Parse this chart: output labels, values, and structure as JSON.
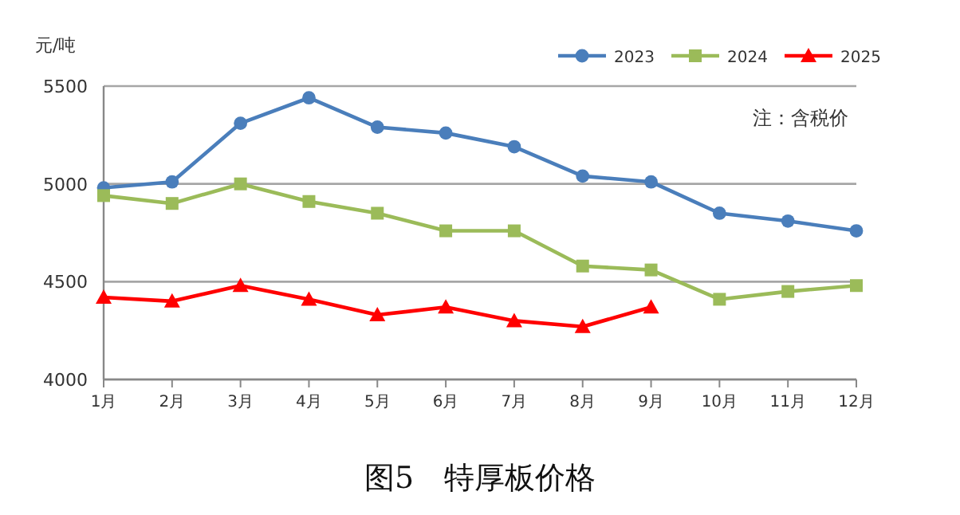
{
  "chart_data": {
    "type": "line",
    "title": "图5　特厚板价格",
    "ylabel": "元/吨",
    "annotations": [
      "注：含税价"
    ],
    "categories": [
      "1月",
      "2月",
      "3月",
      "4月",
      "5月",
      "6月",
      "7月",
      "8月",
      "9月",
      "10月",
      "11月",
      "12月"
    ],
    "series": [
      {
        "name": "2023",
        "color": "#4a7ebb",
        "marker": "circle",
        "values": [
          4980,
          5010,
          5310,
          5440,
          5290,
          5260,
          5190,
          5040,
          5010,
          4850,
          4810,
          4760
        ]
      },
      {
        "name": "2024",
        "color": "#9bbb59",
        "marker": "square",
        "values": [
          4940,
          4900,
          5000,
          4910,
          4850,
          4760,
          4760,
          4580,
          4560,
          4410,
          4450,
          4480
        ]
      },
      {
        "name": "2025",
        "color": "#ff0000",
        "marker": "triangle",
        "values": [
          4420,
          4400,
          4480,
          4410,
          4330,
          4370,
          4300,
          4270,
          4370,
          null,
          null,
          null
        ]
      }
    ],
    "ylim": [
      4000,
      5500
    ],
    "yticks": [
      4000,
      4500,
      5000,
      5500
    ],
    "grid": "y",
    "legend": "top right",
    "line_style": "solid"
  }
}
